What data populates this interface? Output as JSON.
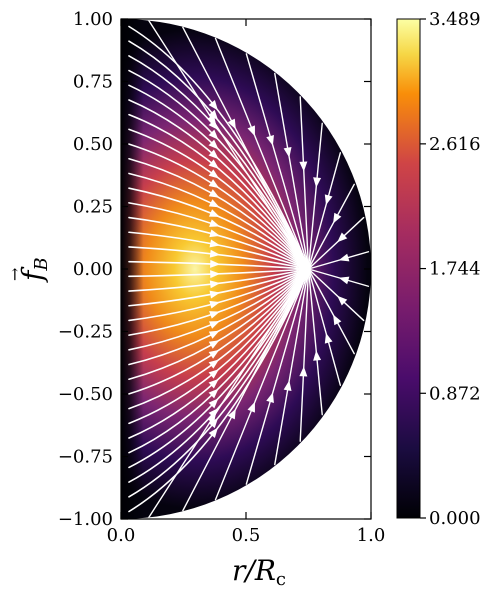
{
  "chart_data": {
    "type": "heatmap",
    "title": "",
    "xlabel": "r/R",
    "xlabel_sub": "c",
    "ylabel": "f",
    "ylabel_sub": "B",
    "xlim": [
      0.0,
      1.0
    ],
    "ylim": [
      -1.0,
      1.0
    ],
    "xticks": [
      "0.0",
      "0.5",
      "1.0"
    ],
    "yticks": [
      "1.00",
      "0.75",
      "0.50",
      "0.25",
      "0.00",
      "−0.25",
      "−0.50",
      "−0.75",
      "−1.00"
    ],
    "colorbar": {
      "colormap": "inferno",
      "range": [
        0.0,
        3.489
      ],
      "ticks": [
        "3.489",
        "2.616",
        "1.744",
        "0.872",
        "0.000"
      ]
    },
    "field": {
      "domain": "half-disk r^2 + z^2 <= 1, r >= 0",
      "peak_value": 3.489,
      "peak_location": {
        "r": 0.3,
        "z": 0.0
      },
      "streamline_color": "#ffffff",
      "streamlines_converge_to": {
        "r": 0.75,
        "z": 0.0
      }
    }
  }
}
